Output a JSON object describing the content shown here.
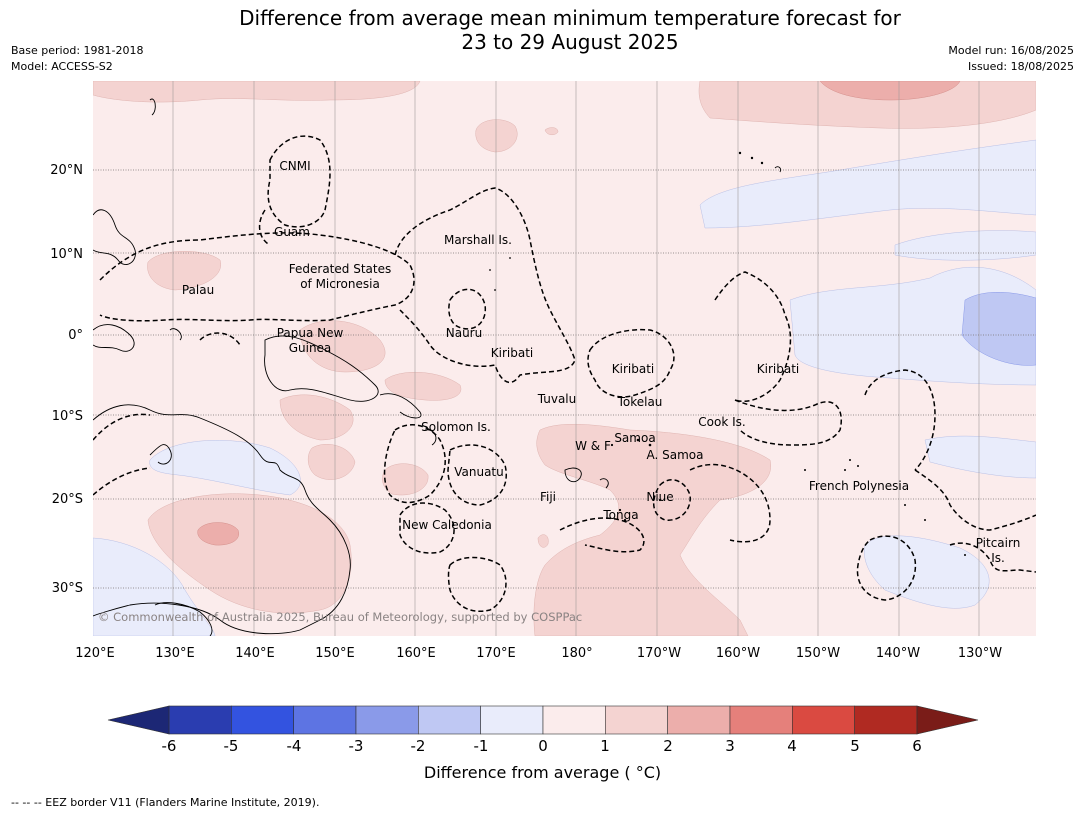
{
  "title_line1": "Difference from average mean minimum temperature forecast for",
  "title_line2": "23 to 29 August 2025",
  "meta_left": [
    "Base period: 1981-2018",
    "Model: ACCESS-S2"
  ],
  "meta_right": [
    "Model run: 16/08/2025",
    "Issued: 18/08/2025"
  ],
  "lat_ticks": [
    "20°N",
    "10°N",
    "0°",
    "10°S",
    "20°S",
    "30°S"
  ],
  "lon_ticks": [
    "120°E",
    "130°E",
    "140°E",
    "150°E",
    "160°E",
    "170°E",
    "180°",
    "170°W",
    "160°W",
    "150°W",
    "140°W",
    "130°W"
  ],
  "regions": [
    {
      "name": "CNMI"
    },
    {
      "name": "Guam"
    },
    {
      "name": "Marshall Is."
    },
    {
      "name": "Federated States"
    },
    {
      "name": "of Micronesia"
    },
    {
      "name": "Palau"
    },
    {
      "name": "Papua New"
    },
    {
      "name": "Guinea"
    },
    {
      "name": "Nauru"
    },
    {
      "name": "Kiribati"
    },
    {
      "name": "Kiribati"
    },
    {
      "name": "Kiribati"
    },
    {
      "name": "Tuvalu"
    },
    {
      "name": "Tokelau"
    },
    {
      "name": "Solomon Is."
    },
    {
      "name": "Cook Is."
    },
    {
      "name": "W & F"
    },
    {
      "name": "Samoa"
    },
    {
      "name": "A. Samoa"
    },
    {
      "name": "Vanuatu"
    },
    {
      "name": "Fiji"
    },
    {
      "name": "Niue"
    },
    {
      "name": "French Polynesia"
    },
    {
      "name": "Tonga"
    },
    {
      "name": "New Caledonia"
    },
    {
      "name": "Pitcairn"
    },
    {
      "name": "Is."
    }
  ],
  "copyright": "© Commonwealth of Australia 2025, Bureau of Meteorology, supported by COSPPac",
  "colorbar": {
    "ticks": [
      "-6",
      "-5",
      "-4",
      "-3",
      "-2",
      "-1",
      "0",
      "1",
      "2",
      "3",
      "4",
      "5",
      "6"
    ],
    "colors": [
      "#2a3db0",
      "#3353e0",
      "#5d74e3",
      "#8a9ae9",
      "#bfc8f3",
      "#e9ecfb",
      "#fbecec",
      "#f4d3d1",
      "#ecaeab",
      "#e5807b",
      "#da4a41",
      "#b02a22"
    ],
    "under_color": "#1c2775",
    "over_color": "#7a1c18",
    "label": "Difference from average ( °C)"
  },
  "footnote": "--  --  -- EEZ border V11 (Flanders Marine Institute, 2019)."
}
